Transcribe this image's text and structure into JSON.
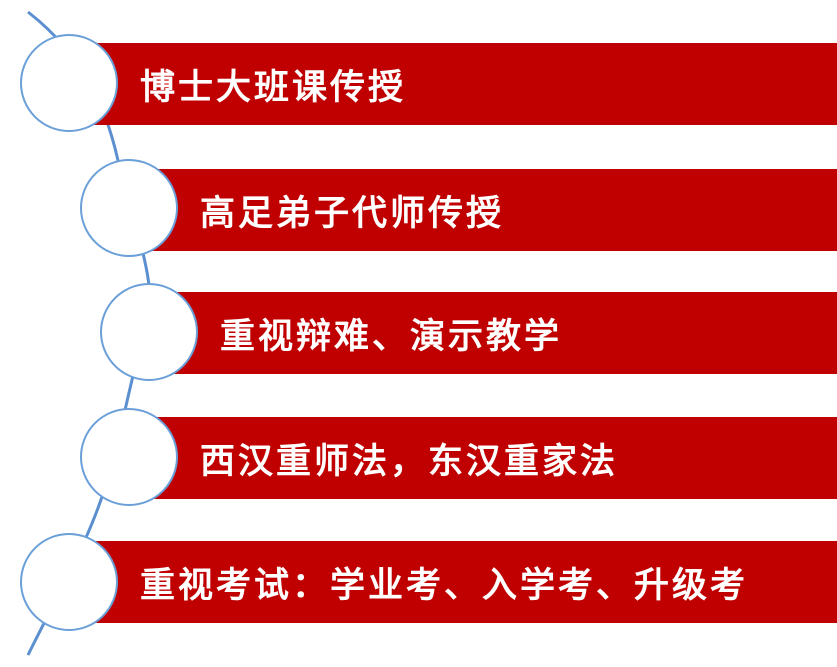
{
  "diagram": {
    "colors": {
      "bar": "#c00000",
      "text": "#ffffff",
      "circle_border": "#6a9fd8",
      "connector": "#5b8fcf"
    },
    "items": [
      {
        "label": "博士大班课传授"
      },
      {
        "label": "高足弟子代师传授"
      },
      {
        "label": "重视辩难、演示教学"
      },
      {
        "label": "西汉重师法，东汉重家法"
      },
      {
        "label": "重视考试：学业考、入学考、升级考"
      }
    ]
  }
}
